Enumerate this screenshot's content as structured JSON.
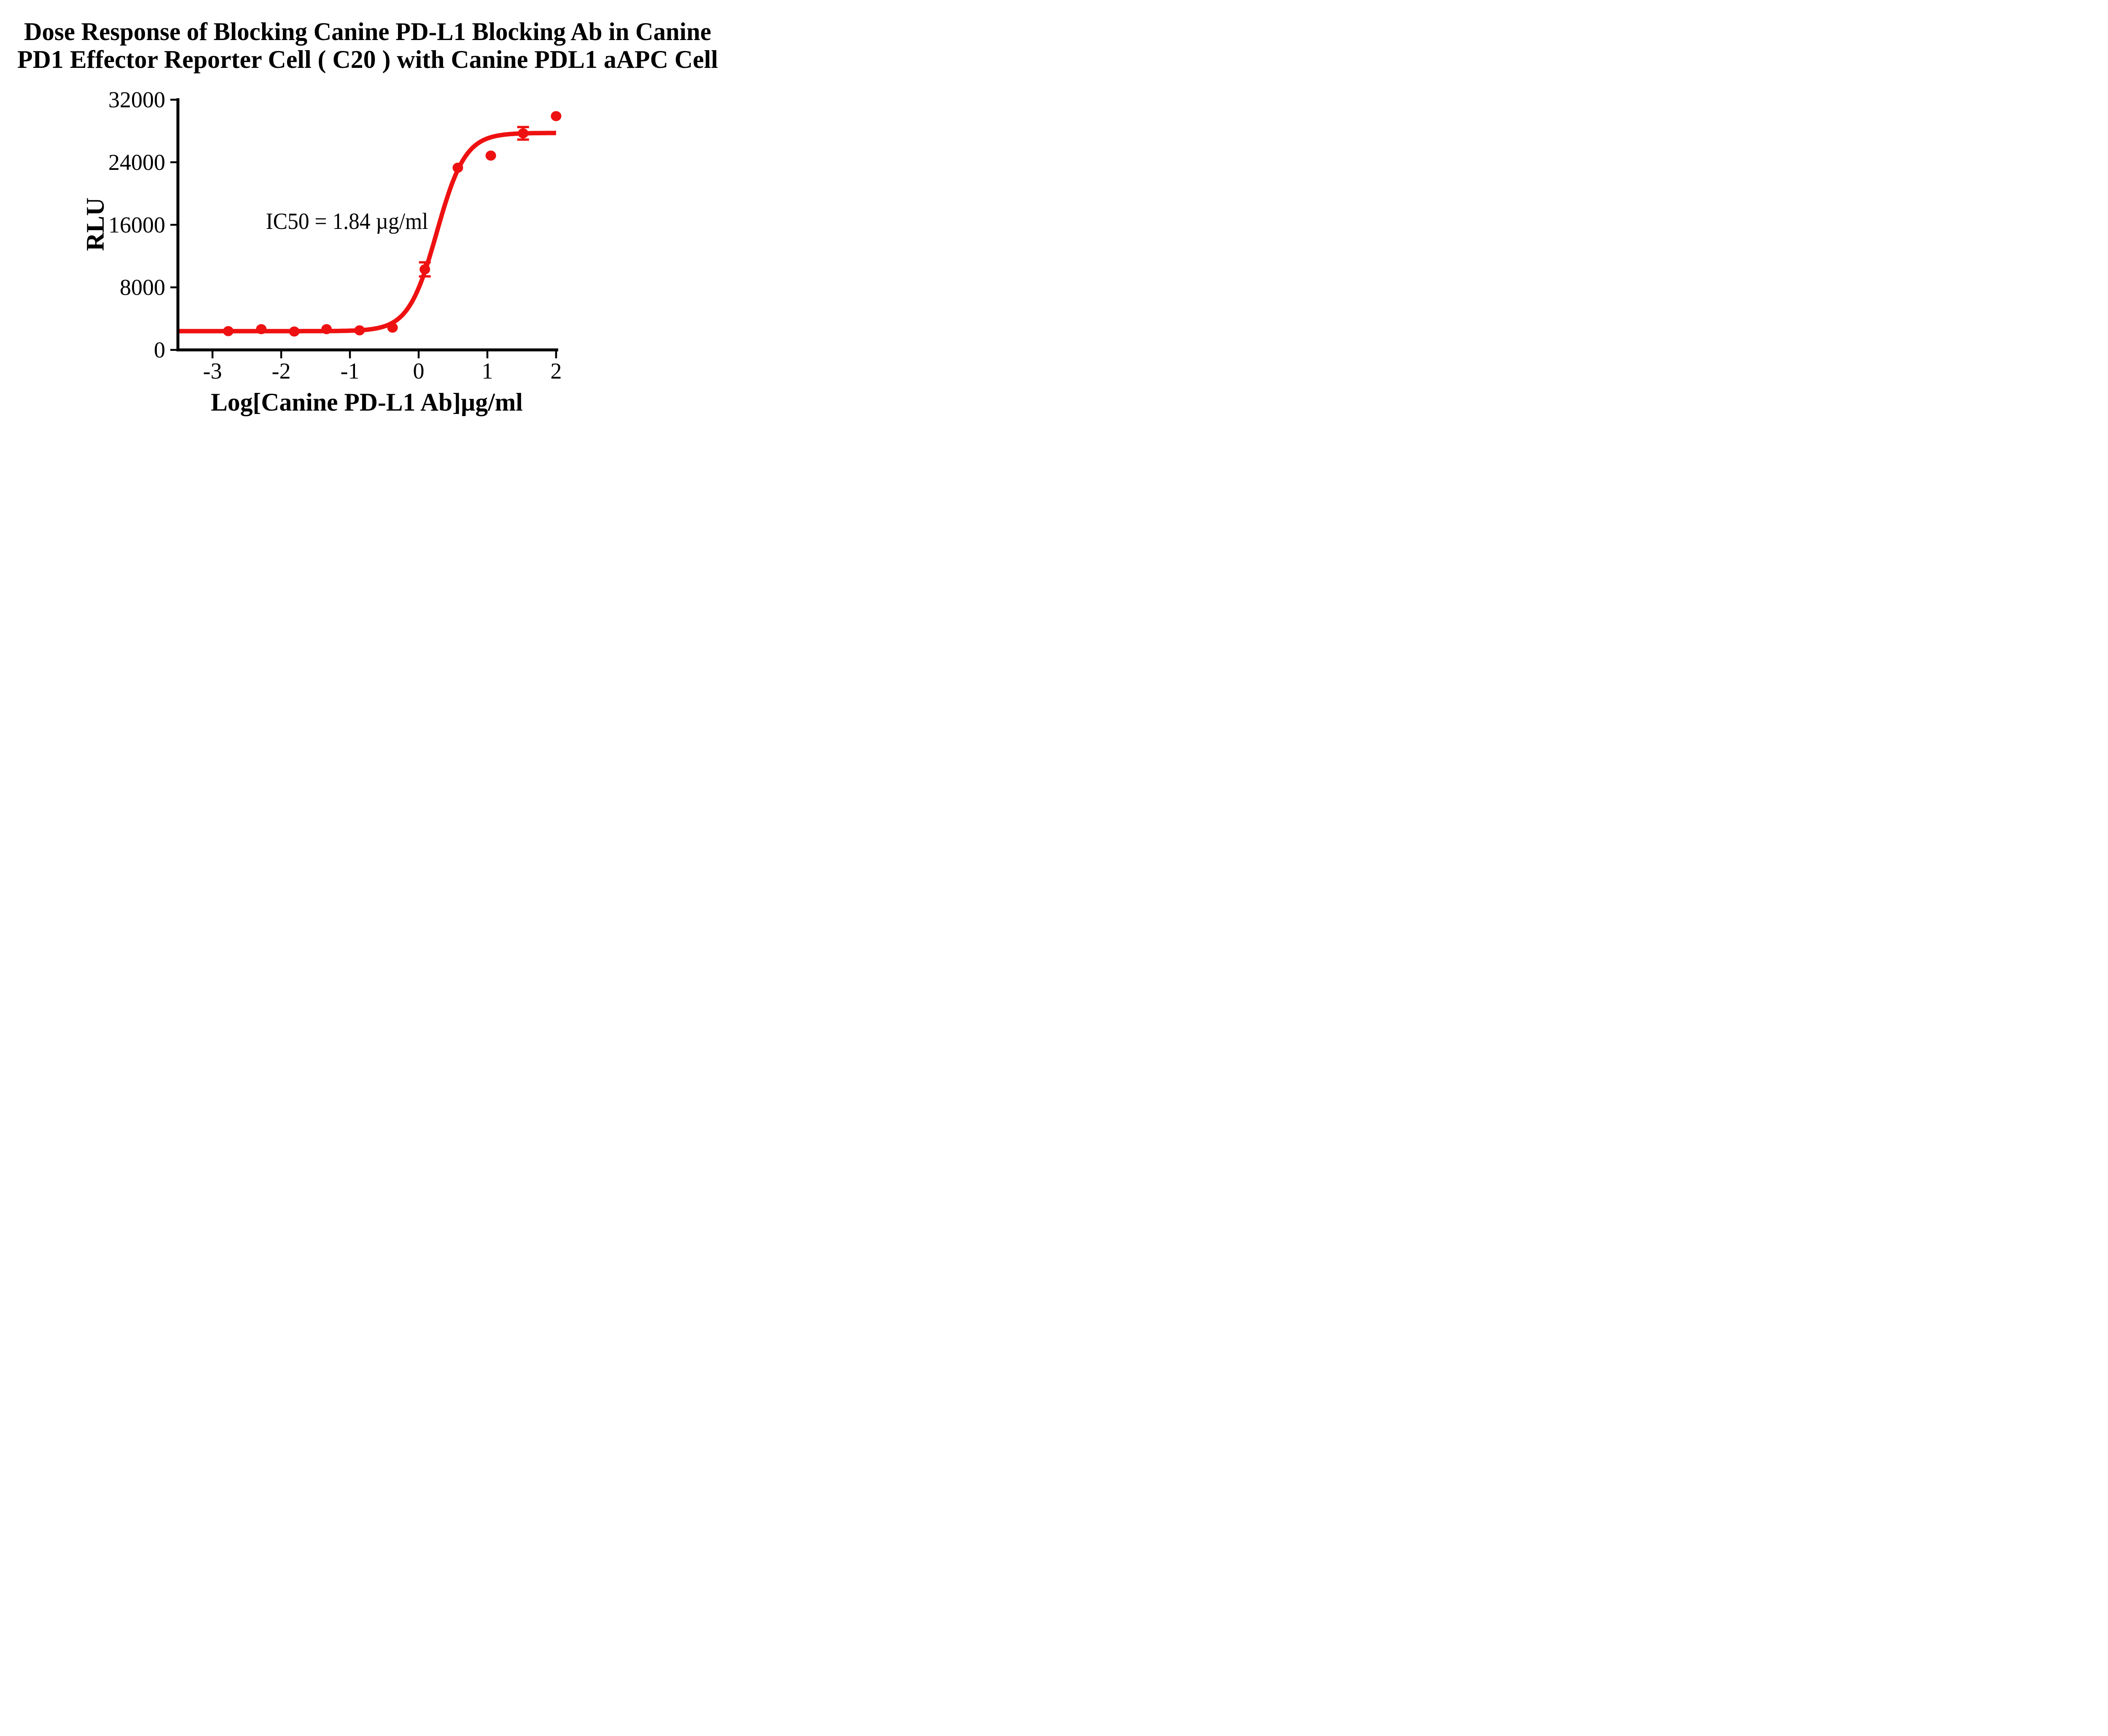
{
  "title": {
    "line1": "Dose Response of Blocking Canine PD-L1 Blocking Ab in Canine",
    "line2": "PD1 Effector Reporter Cell ( C20 )  with Canine PDL1 aAPC Cell"
  },
  "chart_data": {
    "type": "scatter",
    "title": "Dose Response of Blocking Canine PD-L1 Blocking Ab in Canine PD1 Effector Reporter Cell (C20) with Canine PDL1 aAPC Cell",
    "xlabel": "Log[Canine PD-L1 Ab]µg/ml",
    "ylabel": "RLU",
    "annotation": "IC50 = 1.84 µg/ml",
    "ic50": "1.84 µg/ml",
    "x_ticks": [
      -3,
      -2,
      -1,
      0,
      1,
      2
    ],
    "y_ticks": [
      0,
      8000,
      16000,
      24000,
      32000
    ],
    "xlim": [
      -3.5,
      2.2
    ],
    "ylim": [
      0,
      32000
    ],
    "grid": false,
    "legend_position": "none",
    "series": [
      {
        "name": "Canine PD-L1 Blocking Ab",
        "marker": "circle",
        "points": [
          {
            "x": -2.77,
            "y": 2400
          },
          {
            "x": -2.29,
            "y": 2650
          },
          {
            "x": -1.81,
            "y": 2350
          },
          {
            "x": -1.34,
            "y": 2650
          },
          {
            "x": -0.86,
            "y": 2500
          },
          {
            "x": -0.38,
            "y": 2850
          },
          {
            "x": 0.09,
            "y": 10300,
            "err": 900
          },
          {
            "x": 0.57,
            "y": 23300
          },
          {
            "x": 1.05,
            "y": 24850
          },
          {
            "x": 1.52,
            "y": 27700,
            "err": 800
          },
          {
            "x": 2.0,
            "y": 29900
          }
        ]
      }
    ],
    "fit_curve": {
      "model": "four-parameter logistic",
      "bottom": 2400,
      "top": 27750,
      "log_ic50": 0.265,
      "hill": 2.1,
      "x_start": -3.5,
      "x_end": 2.0
    },
    "colors": {
      "curve": "#EE1111",
      "axis": "#000000",
      "text": "#000000"
    }
  }
}
